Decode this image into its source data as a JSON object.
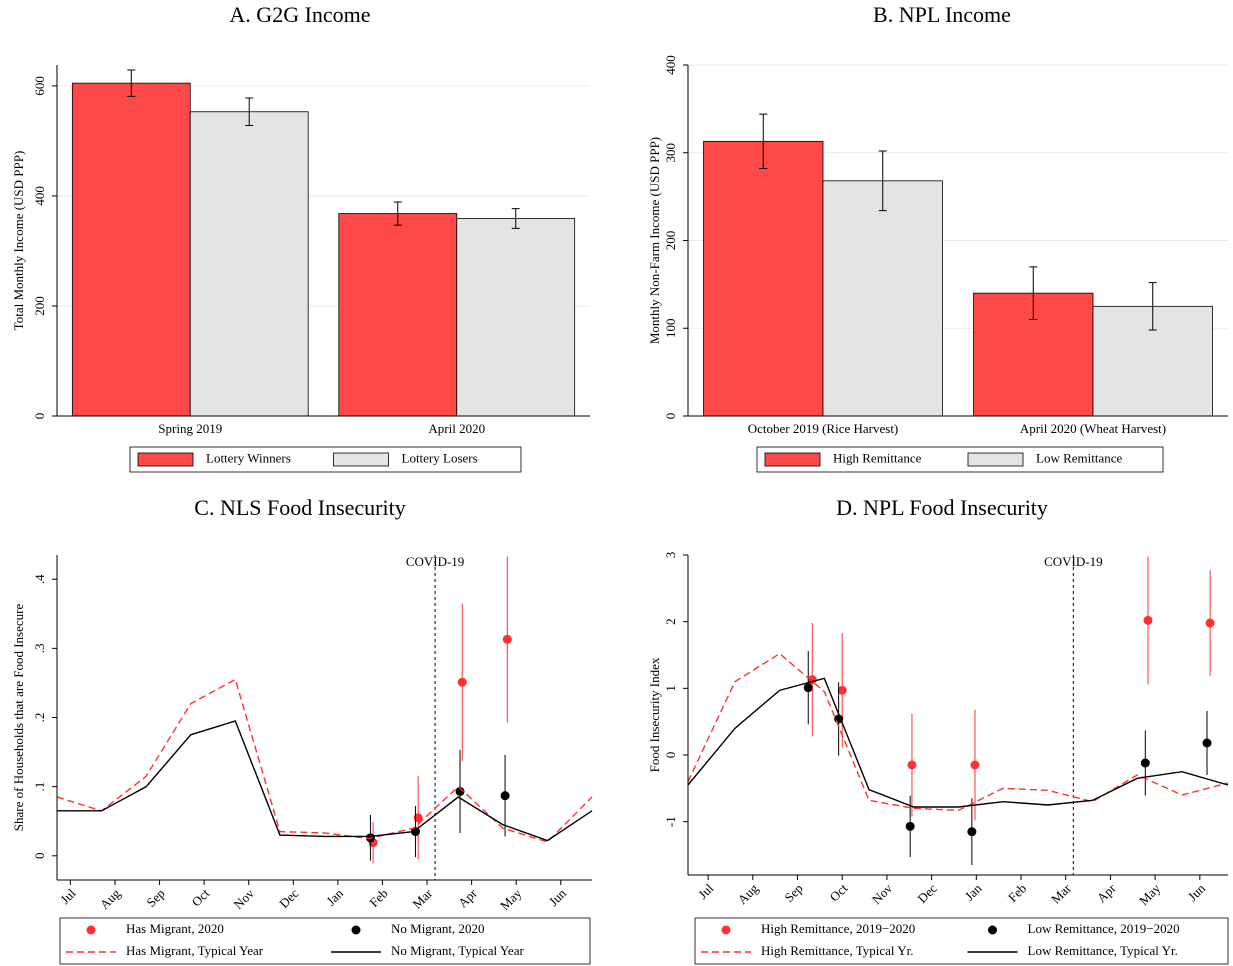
{
  "chart_data": [
    {
      "type": "bar",
      "title": "A. G2G Income",
      "y_label": "Total Monthly Income (USD PPP)",
      "categories": [
        "Spring 2019",
        "April 2020"
      ],
      "series": [
        {
          "name": "Lottery Winners",
          "color": "#ff4848",
          "values": [
            605,
            368
          ],
          "errors": [
            24,
            21
          ]
        },
        {
          "name": "Lottery Losers",
          "color": "#e4e4e4",
          "values": [
            553,
            359
          ],
          "errors": [
            25,
            18
          ]
        }
      ],
      "ylim": [
        0,
        638
      ],
      "yticks": [
        0,
        200,
        400,
        600
      ],
      "grid": true
    },
    {
      "type": "bar",
      "title": "B. NPL Income",
      "y_label": "Monthly Non-Farm Income (USD PPP)",
      "categories": [
        "October 2019 (Rice Harvest)",
        "April 2020 (Wheat Harvest)"
      ],
      "series": [
        {
          "name": "High Remittance",
          "color": "#ff4848",
          "values": [
            313,
            140
          ],
          "errors": [
            31,
            30
          ]
        },
        {
          "name": "Low Remittance",
          "color": "#e4e4e4",
          "values": [
            268,
            125
          ],
          "errors": [
            34,
            27
          ]
        }
      ],
      "ylim": [
        0,
        400
      ],
      "yticks": [
        0,
        100,
        200,
        300,
        400
      ],
      "grid": true
    },
    {
      "type": "line",
      "title": "C. NLS Food Insecurity",
      "y_label": "Share of Households that are Food Insecure",
      "xlim": [
        -0.3,
        11.7
      ],
      "xticks": [
        {
          "value": 0,
          "label": "Jul"
        },
        {
          "value": 1,
          "label": "Aug"
        },
        {
          "value": 2,
          "label": "Sep"
        },
        {
          "value": 3,
          "label": "Oct"
        },
        {
          "value": 4,
          "label": "Nov"
        },
        {
          "value": 5,
          "label": "Dec"
        },
        {
          "value": 6,
          "label": "Jan"
        },
        {
          "value": 7,
          "label": "Feb"
        },
        {
          "value": 8,
          "label": "Mar"
        },
        {
          "value": 9,
          "label": "Apr"
        },
        {
          "value": 10,
          "label": "May"
        },
        {
          "value": 11,
          "label": "Jun"
        }
      ],
      "ylim": [
        -0.035,
        0.435
      ],
      "yticks": [
        0,
        {
          "value": 0.1,
          "label": ".1"
        },
        {
          "value": 0.2,
          "label": ".2"
        },
        {
          "value": 0.3,
          "label": ".3"
        },
        {
          "value": 0.4,
          "label": ".4"
        }
      ],
      "grid": false,
      "vline": {
        "x": 8.18,
        "label": "COVID-19"
      },
      "series": [
        {
          "name": "Has Migrant, 2020",
          "color": "#ff3030",
          "mode": "markers",
          "x": [
            6.79,
            7.8,
            8.79,
            9.8
          ],
          "values": [
            0.019,
            0.055,
            0.251,
            0.313
          ],
          "errors": [
            0.03,
            0.06,
            0.114,
            0.12
          ]
        },
        {
          "name": "No Migrant, 2020",
          "color": "#000000",
          "mode": "markers",
          "x": [
            6.73,
            7.74,
            8.74,
            9.75
          ],
          "values": [
            0.026,
            0.035,
            0.093,
            0.087
          ],
          "errors": [
            0.033,
            0.037,
            0.06,
            0.059
          ]
        },
        {
          "name": "Has Migrant, Typical Year",
          "color": "#ff3030",
          "mode": "line",
          "dash": true,
          "x": [
            -0.3,
            0.7,
            1.7,
            2.7,
            3.7,
            4.7,
            5.7,
            6.7,
            7.7,
            8.7,
            9.7,
            10.7,
            11.7
          ],
          "values": [
            0.085,
            0.065,
            0.115,
            0.22,
            0.255,
            0.035,
            0.033,
            0.025,
            0.04,
            0.1,
            0.04,
            0.02,
            0.085
          ]
        },
        {
          "name": "No Migrant, Typical Year",
          "color": "#000000",
          "mode": "line",
          "dash": false,
          "x": [
            -0.3,
            0.7,
            1.7,
            2.7,
            3.7,
            4.7,
            5.7,
            6.7,
            7.7,
            8.7,
            9.7,
            10.7,
            11.7
          ],
          "values": [
            0.065,
            0.065,
            0.1,
            0.175,
            0.195,
            0.03,
            0.028,
            0.028,
            0.035,
            0.085,
            0.045,
            0.022,
            0.065
          ]
        }
      ]
    },
    {
      "type": "line",
      "title": "D. NPL Food Insecurity",
      "y_label": "Food Insecurity Index",
      "xlim": [
        -0.45,
        11.63
      ],
      "xticks": [
        {
          "value": 0,
          "label": "Jul"
        },
        {
          "value": 1,
          "label": "Aug"
        },
        {
          "value": 2,
          "label": "Sep"
        },
        {
          "value": 3,
          "label": "Oct"
        },
        {
          "value": 4,
          "label": "Nov"
        },
        {
          "value": 5,
          "label": "Dec"
        },
        {
          "value": 6,
          "label": "Jan"
        },
        {
          "value": 7,
          "label": "Feb"
        },
        {
          "value": 8,
          "label": "Mar"
        },
        {
          "value": 9,
          "label": "Apr"
        },
        {
          "value": 10,
          "label": "May"
        },
        {
          "value": 11,
          "label": "Jun"
        }
      ],
      "ylim": [
        -1.8,
        3
      ],
      "yticks": [
        -1,
        0,
        1,
        2,
        3
      ],
      "grid": false,
      "vline": {
        "x": 8.17,
        "label": "COVID-19"
      },
      "series": [
        {
          "name": "High Remittance, 2019−2020",
          "color": "#ff3030",
          "mode": "markers",
          "x": [
            2.33,
            3.0,
            4.56,
            5.97,
            9.84,
            11.23
          ],
          "values": [
            1.13,
            0.97,
            -0.15,
            -0.15,
            2.02,
            1.98
          ],
          "errors": [
            0.85,
            0.86,
            0.77,
            0.83,
            0.96,
            0.79
          ]
        },
        {
          "name": "Low Remittance, 2019−2020",
          "color": "#000000",
          "mode": "markers",
          "x": [
            2.24,
            2.92,
            4.52,
            5.9,
            9.78,
            11.16
          ],
          "values": [
            1.01,
            0.54,
            -1.07,
            -1.15,
            -0.12,
            0.18
          ],
          "errors": [
            0.55,
            0.55,
            0.46,
            0.5,
            0.49,
            0.48
          ]
        },
        {
          "name": "High Remittance, Typical Yr.",
          "color": "#ff3030",
          "mode": "line",
          "dash": true,
          "x": [
            -0.45,
            0.6,
            1.6,
            2.6,
            3.6,
            4.6,
            5.6,
            6.6,
            7.6,
            8.6,
            9.6,
            10.6,
            11.63
          ],
          "values": [
            -0.4,
            1.1,
            1.52,
            0.95,
            -0.68,
            -0.8,
            -0.83,
            -0.5,
            -0.53,
            -0.7,
            -0.3,
            -0.6,
            -0.42
          ]
        },
        {
          "name": "Low Remittance, Typical Yr.",
          "color": "#000000",
          "mode": "line",
          "dash": false,
          "x": [
            -0.45,
            0.6,
            1.6,
            2.6,
            3.6,
            4.6,
            5.6,
            6.6,
            7.6,
            8.6,
            9.6,
            10.6,
            11.63
          ],
          "values": [
            -0.45,
            0.4,
            0.97,
            1.15,
            -0.52,
            -0.78,
            -0.78,
            -0.7,
            -0.75,
            -0.68,
            -0.35,
            -0.25,
            -0.45
          ]
        }
      ]
    }
  ]
}
